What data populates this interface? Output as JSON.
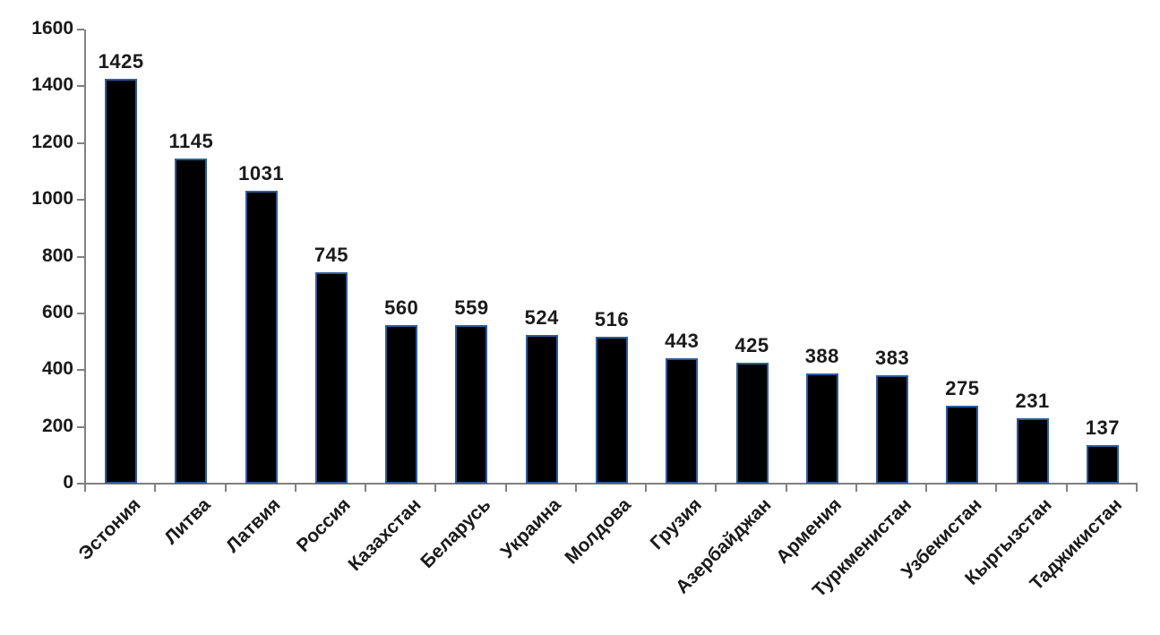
{
  "chart_data": {
    "type": "bar",
    "title": "",
    "xlabel": "",
    "ylabel": "",
    "categories": [
      "Эстония",
      "Литва",
      "Латвия",
      "Россия",
      "Казахстан",
      "Беларусь",
      "Украина",
      "Молдова",
      "Грузия",
      "Азербайджан",
      "Армения",
      "Туркменистан",
      "Узбекистан",
      "Кыргызстан",
      "Таджикистан"
    ],
    "values": [
      1425,
      1145,
      1031,
      745,
      560,
      559,
      524,
      516,
      443,
      425,
      388,
      383,
      275,
      231,
      137
    ],
    "value_labels": [
      "1425",
      "1145",
      "1031",
      "745",
      "560",
      "559",
      "524",
      "516",
      "443",
      "425",
      "388",
      "383",
      "275",
      "231",
      "137"
    ],
    "ylim": [
      0,
      1600
    ],
    "yticks": [
      0,
      200,
      400,
      600,
      800,
      1000,
      1200,
      1400,
      1600
    ],
    "grid": false,
    "legend": null,
    "value_labels_shown": true,
    "colors": {
      "bar_fill": "#000000",
      "bar_border": "#2d5c9e",
      "axis": "#808080",
      "text": "#1a1a1a"
    }
  }
}
